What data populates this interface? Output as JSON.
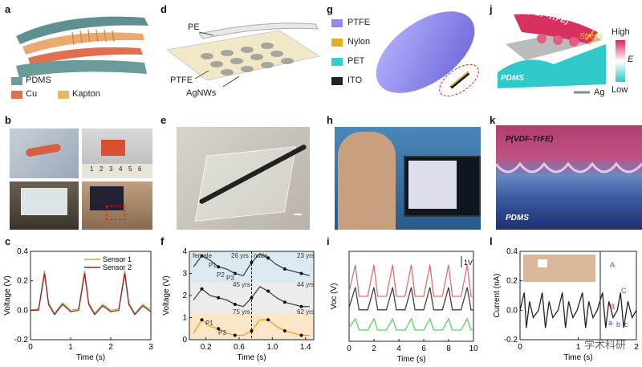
{
  "labels": {
    "a": "a",
    "b": "b",
    "c": "c",
    "d": "d",
    "e": "e",
    "f": "f",
    "g": "g",
    "h": "h",
    "i": "i",
    "j": "j",
    "k": "k",
    "l": "l"
  },
  "panel_a": {
    "legend": [
      "PDMS",
      "Cu",
      "Kapton"
    ],
    "colors": {
      "PDMS": "#6a9a9a",
      "Cu": "#e07050",
      "Kapton": "#e8b860"
    }
  },
  "panel_d": {
    "labels": [
      "PE",
      "PTFE",
      "AgNWs"
    ]
  },
  "panel_g": {
    "legend": [
      "PTFE",
      "Nylon",
      "PET",
      "ITO"
    ],
    "colors": {
      "PTFE": "#8f8bf0",
      "Nylon": "#e0b020",
      "PET": "#30d0c8",
      "ITO": "#222222"
    }
  },
  "panel_j": {
    "top": "P(VDF-TrFE)",
    "stress": "Stress",
    "bottom": "PDMS",
    "scale_high": "High",
    "scale_low": "Low",
    "scale_symbol": "E",
    "electrode": "Ag"
  },
  "panel_k": {
    "top": "P(VDF-TrFE)",
    "bottom": "PDMS"
  },
  "panel_b": {
    "ruler_ticks": [
      "1",
      "2",
      "3",
      "4",
      "5",
      "6"
    ]
  },
  "chart_data": [
    {
      "id": "c",
      "type": "line",
      "xlabel": "Time (s)",
      "ylabel": "Voltage (V)",
      "xlim": [
        0,
        3
      ],
      "ylim": [
        -0.2,
        0.4
      ],
      "xticks": [
        "0",
        "1",
        "2",
        "3"
      ],
      "yticks": [
        "0.4",
        "0.2",
        "0.0",
        "-0.2"
      ],
      "series": [
        {
          "name": "Sensor 1",
          "color": "#9ac040",
          "x": [
            0,
            0.2,
            0.35,
            0.45,
            0.6,
            0.8,
            1.0,
            1.2,
            1.35,
            1.45,
            1.6,
            1.8,
            2.0,
            2.2,
            2.35,
            2.45,
            2.6,
            2.8,
            3.0
          ],
          "y": [
            0,
            0.01,
            0.27,
            0.05,
            -0.02,
            0.05,
            0,
            0.01,
            0.27,
            0.05,
            -0.02,
            0.04,
            0,
            0.01,
            0.27,
            0.05,
            -0.02,
            0.04,
            0
          ]
        },
        {
          "name": "Sensor 2",
          "color": "#9a2040",
          "x": [
            0,
            0.2,
            0.35,
            0.45,
            0.6,
            0.8,
            1.0,
            1.2,
            1.35,
            1.45,
            1.6,
            1.8,
            2.0,
            2.2,
            2.35,
            2.45,
            2.6,
            2.8,
            3.0
          ],
          "y": [
            0,
            0.0,
            0.25,
            0.04,
            -0.03,
            0.04,
            -0.01,
            0.0,
            0.25,
            0.04,
            -0.03,
            0.03,
            -0.01,
            0.0,
            0.25,
            0.04,
            -0.03,
            0.03,
            -0.01
          ]
        }
      ]
    },
    {
      "id": "f",
      "type": "line",
      "xlabel": "Time (s)",
      "ylabel": "Voltage (V)",
      "xlim": [
        0,
        1.5
      ],
      "ylim": [
        0,
        4
      ],
      "xticks": [
        "0.2",
        "0.6",
        "1.0",
        "1.4"
      ],
      "yticks": [
        "4",
        "3",
        "2",
        "1",
        "0"
      ],
      "annotations": [
        "female",
        "26 yrs",
        "male",
        "23 yrs",
        "45 yrs",
        "44 yrs",
        "75 yrs",
        "62 yrs",
        "P1",
        "P2",
        "P3",
        "P1",
        "P3"
      ],
      "series": [
        {
          "name": "",
          "color": "#444",
          "x": [
            0.05,
            0.15,
            0.25,
            0.35,
            0.45,
            0.55,
            0.65,
            0.75,
            0.85,
            0.95,
            1.05,
            1.15,
            1.25,
            1.35,
            1.45
          ],
          "y": [
            3.3,
            3.8,
            3.6,
            3.3,
            3.2,
            3.0,
            2.9,
            3.5,
            3.9,
            3.7,
            3.4,
            3.2,
            3.1,
            3.0,
            2.9
          ]
        },
        {
          "name": "",
          "color": "#444",
          "x": [
            0.05,
            0.15,
            0.25,
            0.35,
            0.45,
            0.55,
            0.65,
            0.75,
            0.85,
            0.95,
            1.05,
            1.15,
            1.25,
            1.35,
            1.45
          ],
          "y": [
            1.8,
            2.3,
            2.0,
            1.9,
            1.8,
            1.6,
            1.5,
            1.9,
            2.4,
            2.2,
            1.9,
            1.7,
            1.6,
            1.5,
            1.5
          ]
        },
        {
          "name": "",
          "color": "#f0a020",
          "x": [
            0.05,
            0.15,
            0.25,
            0.35,
            0.45,
            0.55,
            0.65,
            0.75,
            0.85,
            0.95,
            1.05,
            1.15,
            1.25,
            1.35,
            1.45
          ],
          "y": [
            0.3,
            0.9,
            0.6,
            0.5,
            0.3,
            0.2,
            0.2,
            0.4,
            0.9,
            0.9,
            0.6,
            0.4,
            0.3,
            0.2,
            0.2
          ]
        }
      ]
    },
    {
      "id": "i",
      "type": "line",
      "xlabel": "Time (s)",
      "ylabel": "Voc (V)",
      "xlim": [
        0,
        10
      ],
      "xticks": [
        "0",
        "2",
        "4",
        "6",
        "8",
        "10"
      ],
      "scalebar": "1V",
      "series": [
        {
          "name": "",
          "color": "#e07070",
          "x": [
            0,
            0.5,
            0.8,
            1.5,
            2.0,
            2.3,
            3.0,
            3.5,
            3.8,
            4.5,
            5.0,
            5.3,
            6.0,
            6.5,
            6.8,
            7.5,
            8.0,
            8.3,
            9.0,
            9.5,
            9.8,
            10
          ],
          "y": [
            2.2,
            3.4,
            2.0,
            2.0,
            3.4,
            2.0,
            2.0,
            3.4,
            2.0,
            2.0,
            3.4,
            2.0,
            2.0,
            3.4,
            2.0,
            2.0,
            3.4,
            2.0,
            2.0,
            3.4,
            2.0,
            2.0
          ]
        },
        {
          "name": "",
          "color": "#404040",
          "x": [
            0,
            0.5,
            0.8,
            1.5,
            2.0,
            2.3,
            3.0,
            3.5,
            3.8,
            4.5,
            5.0,
            5.3,
            6.0,
            6.5,
            6.8,
            7.5,
            8.0,
            8.3,
            9.0,
            9.5,
            9.8,
            10
          ],
          "y": [
            1.5,
            2.4,
            1.4,
            1.4,
            2.4,
            1.4,
            1.4,
            2.4,
            1.4,
            1.4,
            2.4,
            1.4,
            1.4,
            2.4,
            1.4,
            1.4,
            2.4,
            1.4,
            1.4,
            2.4,
            1.4,
            1.4
          ]
        },
        {
          "name": "",
          "color": "#60d060",
          "x": [
            0,
            0.5,
            0.8,
            1.5,
            2.0,
            2.3,
            3.0,
            3.5,
            3.8,
            4.5,
            5.0,
            5.3,
            6.0,
            6.5,
            6.8,
            7.5,
            8.0,
            8.3,
            9.0,
            9.5,
            9.8,
            10
          ],
          "y": [
            0.6,
            1.0,
            0.5,
            0.5,
            1.0,
            0.5,
            0.5,
            1.0,
            0.5,
            0.5,
            1.0,
            0.5,
            0.5,
            1.0,
            0.5,
            0.5,
            1.0,
            0.5,
            0.5,
            1.0,
            0.5,
            0.5
          ]
        }
      ]
    },
    {
      "id": "l",
      "type": "line",
      "xlabel": "Time (s)",
      "ylabel": "Current (nA)",
      "xlim": [
        0,
        2.2
      ],
      "ylim": [
        -0.2,
        0.4
      ],
      "xticks": [
        "0",
        "1",
        "2"
      ],
      "yticks": [
        "0.4",
        "0.2",
        "0.0",
        "-0.2"
      ],
      "annotations": [
        "A",
        "B",
        "C",
        "a",
        "b",
        "c"
      ],
      "series": [
        {
          "name": "",
          "color": "#222",
          "x": [
            0,
            0.08,
            0.12,
            0.18,
            0.25,
            0.35,
            0.42,
            0.48,
            0.55,
            0.62,
            0.72,
            0.8,
            0.86,
            0.92,
            1.0,
            1.08,
            1.18,
            1.24,
            1.3,
            1.38,
            1.46,
            1.56,
            1.62,
            1.68,
            1.76,
            1.84,
            1.9,
            1.96,
            2.04,
            2.12,
            2.2
          ],
          "y": [
            0,
            0.12,
            -0.12,
            0.06,
            -0.05,
            0,
            0.12,
            -0.12,
            0.06,
            -0.05,
            0,
            0.12,
            -0.12,
            0.06,
            -0.05,
            0,
            0.12,
            -0.12,
            0.06,
            -0.05,
            0,
            0.12,
            -0.12,
            0.06,
            -0.05,
            0,
            0.12,
            -0.12,
            0.06,
            -0.05,
            0
          ]
        }
      ]
    }
  ],
  "watermark": "学术科研"
}
